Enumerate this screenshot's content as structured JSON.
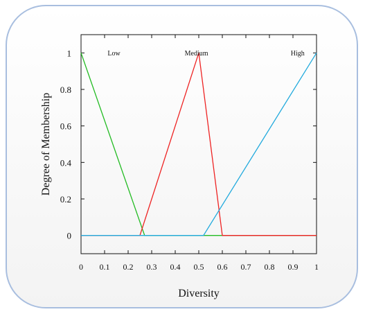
{
  "chart_data": {
    "type": "line",
    "xlabel": "Diversity",
    "ylabel": "Degree of Membership",
    "xlim": [
      0,
      1
    ],
    "ylim": [
      -0.1,
      1.1
    ],
    "x_ticks": [
      "0",
      "0.1",
      "0.2",
      "0.3",
      "0.4",
      "0.5",
      "0.6",
      "0.7",
      "0.8",
      "0.9",
      "1"
    ],
    "y_ticks": [
      "0",
      "0.2",
      "0.4",
      "0.6",
      "0.8",
      "1"
    ],
    "grid": false,
    "series": [
      {
        "name": "Low",
        "color": "#22bb22",
        "x": [
          0,
          0.27,
          1
        ],
        "y": [
          1,
          0,
          0
        ]
      },
      {
        "name": "Medium",
        "color": "#ee2222",
        "x": [
          0,
          0.25,
          0.5,
          0.6,
          1
        ],
        "y": [
          0,
          0,
          1,
          0,
          0
        ]
      },
      {
        "name": "High",
        "color": "#22aadd",
        "x": [
          0,
          0.52,
          1
        ],
        "y": [
          0,
          0,
          1
        ]
      }
    ],
    "series_labels": [
      {
        "text": "Low",
        "x": 0.14
      },
      {
        "text": "Medium",
        "x": 0.49
      },
      {
        "text": "High",
        "x": 0.92
      }
    ]
  }
}
